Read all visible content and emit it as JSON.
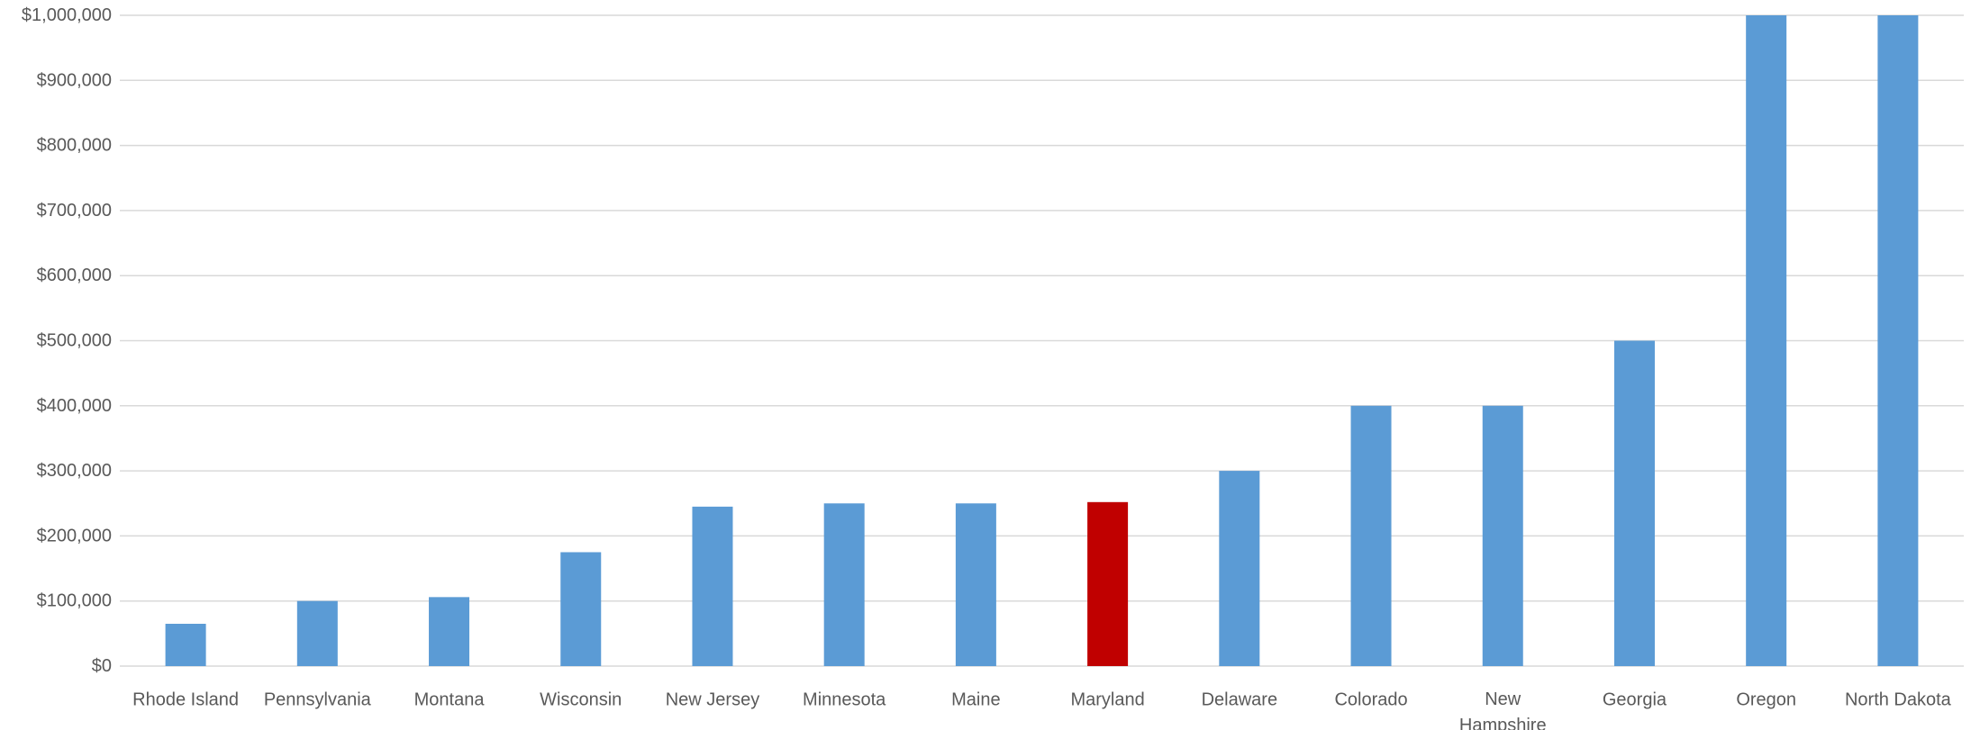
{
  "chart_data": {
    "type": "bar",
    "title": "",
    "xlabel": "",
    "ylabel": "",
    "ylim": [
      0,
      1000000
    ],
    "ytick_values": [
      0,
      100000,
      200000,
      300000,
      400000,
      500000,
      600000,
      700000,
      800000,
      900000,
      1000000
    ],
    "ytick_labels": [
      "$0",
      "$100,000",
      "$200,000",
      "$300,000",
      "$400,000",
      "$500,000",
      "$600,000",
      "$700,000",
      "$800,000",
      "$900,000",
      "$1,000,000"
    ],
    "grid": true,
    "legend": "none",
    "categories": [
      "Rhode Island",
      "Pennsylvania",
      "Montana",
      "Wisconsin",
      "New Jersey",
      "Minnesota",
      "Maine",
      "Maryland",
      "Delaware",
      "Colorado",
      "New Hampshire",
      "Georgia",
      "Oregon",
      "North Dakota"
    ],
    "values": [
      65000,
      100000,
      106000,
      175000,
      245000,
      250000,
      250000,
      252000,
      300000,
      400000,
      400000,
      500000,
      1000000,
      1000000
    ],
    "colors": {
      "default": "#5b9bd5",
      "highlight": "#c00000",
      "grid": "#d9d9d9",
      "text": "#595959"
    },
    "highlight_category": "Maryland"
  }
}
